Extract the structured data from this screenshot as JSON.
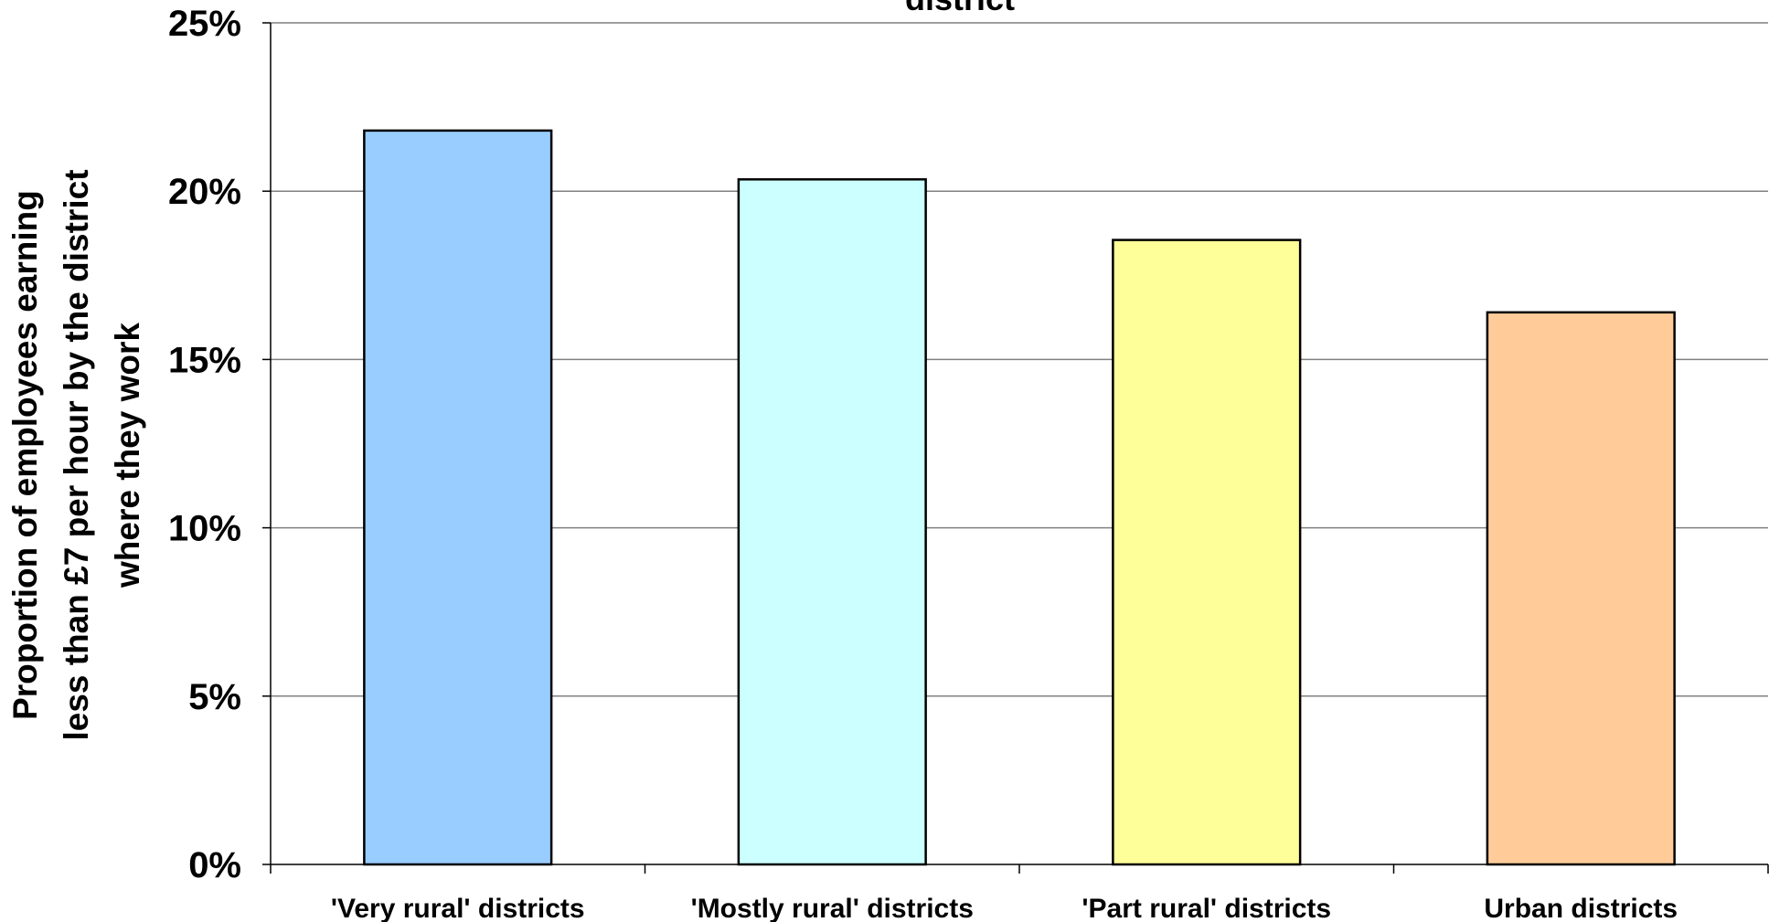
{
  "chart_data": {
    "type": "bar",
    "title": "district",
    "ylabel": [
      "Proportion of employees earning",
      "less than £7 per hour by the district",
      "where they work"
    ],
    "xlabel": "",
    "categories": [
      "'Very rural' districts",
      "'Mostly rural' districts",
      "'Part rural' districts",
      "Urban districts"
    ],
    "values": [
      21.8,
      20.35,
      18.55,
      16.4
    ],
    "colors": [
      "#99ccff",
      "#ccffff",
      "#ffff99",
      "#ffcc99"
    ],
    "ylim": [
      0,
      25
    ],
    "yticks": [
      "0%",
      "5%",
      "10%",
      "15%",
      "20%",
      "25%"
    ],
    "grid": true
  }
}
